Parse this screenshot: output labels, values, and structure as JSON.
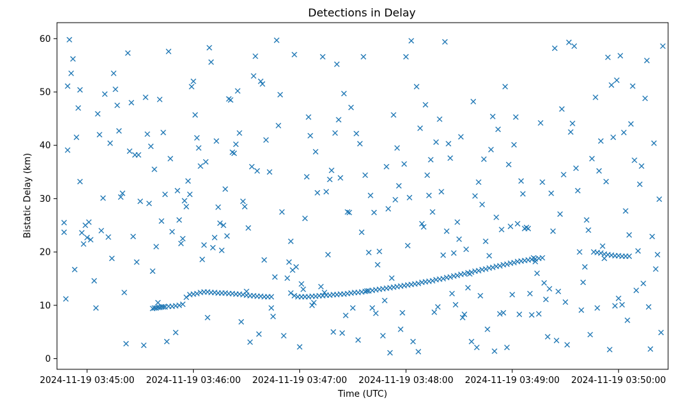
{
  "chart_data": {
    "type": "scatter",
    "title": "Detections in Delay",
    "xlabel": "Time (UTC)",
    "ylabel": "Bistatic Delay (km)",
    "marker": "x",
    "color": "#1f77b4",
    "xlim": [
      -17,
      328
    ],
    "ylim": [
      -2,
      63
    ],
    "xticks": [
      {
        "t": 0,
        "label": "2024-11-19 03:45:00"
      },
      {
        "t": 60,
        "label": "2024-11-19 03:46:00"
      },
      {
        "t": 120,
        "label": "2024-11-19 03:47:00"
      },
      {
        "t": 180,
        "label": "2024-11-19 03:48:00"
      },
      {
        "t": 240,
        "label": "2024-11-19 03:49:00"
      },
      {
        "t": 300,
        "label": "2024-11-19 03:50:00"
      }
    ],
    "yticks": [
      0,
      10,
      20,
      30,
      40,
      50,
      60
    ],
    "track_points": [
      [
        37,
        9.4
      ],
      [
        38,
        9.5
      ],
      [
        39,
        9.5
      ],
      [
        40,
        9.6
      ],
      [
        41,
        9.6
      ],
      [
        42,
        9.7
      ],
      [
        43,
        9.7
      ],
      [
        44,
        9.7
      ],
      [
        46,
        9.8
      ],
      [
        48,
        9.8
      ],
      [
        50,
        9.9
      ],
      [
        52,
        10
      ],
      [
        54,
        10.2
      ],
      [
        56,
        11.5
      ],
      [
        58,
        12
      ],
      [
        60,
        12.1
      ],
      [
        62,
        12.2
      ],
      [
        64,
        12.4
      ],
      [
        66,
        12.5
      ],
      [
        68,
        12.5
      ],
      [
        70,
        12.4
      ],
      [
        72,
        12.4
      ],
      [
        74,
        12.3
      ],
      [
        76,
        12.3
      ],
      [
        78,
        12.3
      ],
      [
        80,
        12.2
      ],
      [
        82,
        12.2
      ],
      [
        84,
        12.1
      ],
      [
        86,
        12.1
      ],
      [
        88,
        12
      ],
      [
        90,
        11.9
      ],
      [
        92,
        11.8
      ],
      [
        94,
        11.8
      ],
      [
        96,
        11.7
      ],
      [
        98,
        11.7
      ],
      [
        100,
        11.6
      ],
      [
        102,
        11.6
      ],
      [
        104,
        11.6
      ],
      [
        115,
        12.3
      ],
      [
        117,
        11.8
      ],
      [
        119,
        11.6
      ],
      [
        121,
        11.6
      ],
      [
        123,
        11.6
      ],
      [
        125,
        11.6
      ],
      [
        127,
        11.7
      ],
      [
        129,
        11.7
      ],
      [
        131,
        11.8
      ],
      [
        133,
        11.8
      ],
      [
        135,
        11.9
      ],
      [
        137,
        11.9
      ],
      [
        139,
        12
      ],
      [
        141,
        12
      ],
      [
        143,
        12.1
      ],
      [
        145,
        12.1
      ],
      [
        147,
        12.2
      ],
      [
        149,
        12.3
      ],
      [
        151,
        12.4
      ],
      [
        153,
        12.4
      ],
      [
        155,
        12.5
      ],
      [
        157,
        12.6
      ],
      [
        159,
        12.7
      ],
      [
        161,
        12.8
      ],
      [
        163,
        12.9
      ],
      [
        165,
        13
      ],
      [
        167,
        13.1
      ],
      [
        169,
        13.2
      ],
      [
        171,
        13.3
      ],
      [
        173,
        13.4
      ],
      [
        175,
        13.5
      ],
      [
        177,
        13.6
      ],
      [
        179,
        13.7
      ],
      [
        181,
        13.8
      ],
      [
        183,
        13.9
      ],
      [
        185,
        14
      ],
      [
        187,
        14.1
      ],
      [
        189,
        14.3
      ],
      [
        191,
        14.4
      ],
      [
        193,
        14.5
      ],
      [
        195,
        14.6
      ],
      [
        197,
        14.8
      ],
      [
        199,
        14.9
      ],
      [
        201,
        15
      ],
      [
        203,
        15.2
      ],
      [
        205,
        15.3
      ],
      [
        207,
        15.5
      ],
      [
        209,
        15.6
      ],
      [
        211,
        15.8
      ],
      [
        213,
        15.9
      ],
      [
        215,
        16.1
      ],
      [
        217,
        16.2
      ],
      [
        219,
        16.4
      ],
      [
        221,
        16.5
      ],
      [
        223,
        16.7
      ],
      [
        225,
        16.8
      ],
      [
        227,
        17
      ],
      [
        229,
        17.1
      ],
      [
        231,
        17.3
      ],
      [
        233,
        17.4
      ],
      [
        235,
        17.6
      ],
      [
        237,
        17.7
      ],
      [
        239,
        17.9
      ],
      [
        241,
        18
      ],
      [
        243,
        18.2
      ],
      [
        245,
        18.3
      ],
      [
        247,
        18.4
      ],
      [
        249,
        18.5
      ],
      [
        251,
        18.6
      ],
      [
        253,
        18.7
      ],
      [
        255,
        18.8
      ],
      [
        257,
        18.9
      ],
      [
        286,
        20
      ],
      [
        288,
        19.9
      ],
      [
        290,
        19.8
      ],
      [
        292,
        19.6
      ],
      [
        294,
        19.5
      ],
      [
        296,
        19.4
      ],
      [
        298,
        19.3
      ],
      [
        300,
        19.3
      ],
      [
        302,
        19.2
      ],
      [
        304,
        19.2
      ],
      [
        306,
        19.2
      ]
    ],
    "clutter_points": [
      [
        -13,
        25.5
      ],
      [
        -13,
        23.7
      ],
      [
        -12,
        11.2
      ],
      [
        -11,
        39.1
      ],
      [
        -11,
        51.1
      ],
      [
        -10,
        59.8
      ],
      [
        -9,
        53.5
      ],
      [
        -8,
        56.2
      ],
      [
        -7,
        16.7
      ],
      [
        -6,
        41.5
      ],
      [
        -5,
        47
      ],
      [
        -4,
        33.2
      ],
      [
        -4,
        50.4
      ],
      [
        -3,
        23.6
      ],
      [
        -2,
        21.5
      ],
      [
        -1,
        25
      ],
      [
        0,
        22.7
      ],
      [
        1,
        25.6
      ],
      [
        2,
        22.3
      ],
      [
        4,
        14.6
      ],
      [
        5,
        9.5
      ],
      [
        6,
        45.9
      ],
      [
        7,
        42
      ],
      [
        8,
        24
      ],
      [
        9,
        30.1
      ],
      [
        10,
        49.6
      ],
      [
        12,
        22.8
      ],
      [
        13,
        40.4
      ],
      [
        14,
        18.8
      ],
      [
        15,
        53.5
      ],
      [
        16,
        50.5
      ],
      [
        17,
        47.5
      ],
      [
        18,
        42.7
      ],
      [
        19,
        30.3
      ],
      [
        20,
        31
      ],
      [
        21,
        12.4
      ],
      [
        22,
        2.8
      ],
      [
        23,
        57.3
      ],
      [
        24,
        38.9
      ],
      [
        25,
        48
      ],
      [
        26,
        22.9
      ],
      [
        27,
        38.2
      ],
      [
        28,
        18.1
      ],
      [
        29,
        38.2
      ],
      [
        30,
        29.5
      ],
      [
        32,
        2.5
      ],
      [
        33,
        49
      ],
      [
        34,
        42.1
      ],
      [
        35,
        29.1
      ],
      [
        36,
        39.8
      ],
      [
        37,
        16.4
      ],
      [
        38,
        35.5
      ],
      [
        39,
        21
      ],
      [
        40,
        10.5
      ],
      [
        41,
        48.6
      ],
      [
        42,
        25.8
      ],
      [
        43,
        42.4
      ],
      [
        44,
        30.8
      ],
      [
        45,
        3.2
      ],
      [
        46,
        57.6
      ],
      [
        47,
        37.5
      ],
      [
        48,
        23.8
      ],
      [
        50,
        4.9
      ],
      [
        51,
        31.5
      ],
      [
        52,
        26
      ],
      [
        53,
        21.6
      ],
      [
        54,
        22.5
      ],
      [
        55,
        29.6
      ],
      [
        56,
        28.5
      ],
      [
        57,
        33.3
      ],
      [
        58,
        30.8
      ],
      [
        59,
        51
      ],
      [
        60,
        52
      ],
      [
        61,
        45.7
      ],
      [
        62,
        41.4
      ],
      [
        63,
        39.5
      ],
      [
        64,
        36.1
      ],
      [
        65,
        18.6
      ],
      [
        66,
        21.3
      ],
      [
        67,
        36.9
      ],
      [
        68,
        7.7
      ],
      [
        69,
        58.3
      ],
      [
        70,
        55.6
      ],
      [
        71,
        20.8
      ],
      [
        72,
        22.7
      ],
      [
        73,
        40.8
      ],
      [
        74,
        28.4
      ],
      [
        75,
        25.4
      ],
      [
        76,
        20.3
      ],
      [
        77,
        25
      ],
      [
        78,
        31.8
      ],
      [
        79,
        23
      ],
      [
        80,
        48.7
      ],
      [
        81,
        48.5
      ],
      [
        82,
        38.7
      ],
      [
        83,
        38.5
      ],
      [
        84,
        40.2
      ],
      [
        85,
        50.2
      ],
      [
        86,
        42.3
      ],
      [
        87,
        6.9
      ],
      [
        88,
        29.5
      ],
      [
        89,
        28.5
      ],
      [
        90,
        12.6
      ],
      [
        91,
        24.5
      ],
      [
        92,
        3.1
      ],
      [
        93,
        36
      ],
      [
        94,
        53
      ],
      [
        95,
        56.7
      ],
      [
        96,
        35.2
      ],
      [
        97,
        4.6
      ],
      [
        98,
        52
      ],
      [
        99,
        51.5
      ],
      [
        100,
        18.5
      ],
      [
        101,
        41
      ],
      [
        103,
        35
      ],
      [
        104,
        9.5
      ],
      [
        105,
        7.9
      ],
      [
        106,
        15.3
      ],
      [
        107,
        59.7
      ],
      [
        108,
        43.7
      ],
      [
        109,
        49.5
      ],
      [
        110,
        27.5
      ],
      [
        111,
        4.3
      ],
      [
        113,
        15.1
      ],
      [
        114,
        18.1
      ],
      [
        115,
        22
      ],
      [
        116,
        16.6
      ],
      [
        117,
        57
      ],
      [
        118,
        17.2
      ],
      [
        120,
        2.2
      ],
      [
        121,
        14
      ],
      [
        122,
        13
      ],
      [
        123,
        26.3
      ],
      [
        124,
        34.1
      ],
      [
        125,
        45.3
      ],
      [
        126,
        41.8
      ],
      [
        127,
        10
      ],
      [
        128,
        10.5
      ],
      [
        129,
        38.8
      ],
      [
        130,
        31.1
      ],
      [
        132,
        13.5
      ],
      [
        133,
        56.6
      ],
      [
        134,
        12.4
      ],
      [
        135,
        31.3
      ],
      [
        136,
        19.5
      ],
      [
        137,
        33.6
      ],
      [
        138,
        35.3
      ],
      [
        139,
        5
      ],
      [
        140,
        42.3
      ],
      [
        141,
        55.2
      ],
      [
        142,
        44.8
      ],
      [
        143,
        33.9
      ],
      [
        144,
        4.8
      ],
      [
        145,
        49.7
      ],
      [
        146,
        8.1
      ],
      [
        147,
        27.5
      ],
      [
        148,
        27.4
      ],
      [
        149,
        47.1
      ],
      [
        150,
        9.5
      ],
      [
        152,
        42.2
      ],
      [
        153,
        3.5
      ],
      [
        154,
        40.3
      ],
      [
        155,
        23.7
      ],
      [
        156,
        56.6
      ],
      [
        157,
        34.4
      ],
      [
        158,
        12.7
      ],
      [
        159,
        19.9
      ],
      [
        160,
        30.6
      ],
      [
        161,
        9.5
      ],
      [
        162,
        27.4
      ],
      [
        163,
        8.5
      ],
      [
        164,
        17.6
      ],
      [
        165,
        20.1
      ],
      [
        167,
        4.3
      ],
      [
        168,
        10.9
      ],
      [
        169,
        36
      ],
      [
        170,
        28.1
      ],
      [
        171,
        1.1
      ],
      [
        172,
        15.1
      ],
      [
        173,
        45.7
      ],
      [
        174,
        29.8
      ],
      [
        175,
        39.5
      ],
      [
        176,
        32.4
      ],
      [
        177,
        5.5
      ],
      [
        178,
        8.6
      ],
      [
        179,
        36.5
      ],
      [
        180,
        56.6
      ],
      [
        181,
        21.2
      ],
      [
        182,
        30.2
      ],
      [
        183,
        59.6
      ],
      [
        184,
        3.2
      ],
      [
        186,
        51
      ],
      [
        187,
        1.3
      ],
      [
        188,
        43.2
      ],
      [
        189,
        25.3
      ],
      [
        190,
        24.7
      ],
      [
        191,
        47.6
      ],
      [
        192,
        34.4
      ],
      [
        193,
        30.6
      ],
      [
        194,
        37.3
      ],
      [
        195,
        27.5
      ],
      [
        196,
        8.7
      ],
      [
        197,
        40.6
      ],
      [
        198,
        9.7
      ],
      [
        199,
        44.9
      ],
      [
        200,
        31.3
      ],
      [
        201,
        19.4
      ],
      [
        202,
        59.4
      ],
      [
        203,
        23.9
      ],
      [
        204,
        40.3
      ],
      [
        205,
        37.6
      ],
      [
        206,
        12.2
      ],
      [
        207,
        19.8
      ],
      [
        208,
        10.1
      ],
      [
        209,
        25.6
      ],
      [
        210,
        22.4
      ],
      [
        211,
        41.6
      ],
      [
        212,
        7.7
      ],
      [
        213,
        8.3
      ],
      [
        214,
        20.5
      ],
      [
        215,
        13.3
      ],
      [
        216,
        15.9
      ],
      [
        217,
        3.2
      ],
      [
        218,
        48.2
      ],
      [
        219,
        30.5
      ],
      [
        220,
        2.1
      ],
      [
        221,
        33.1
      ],
      [
        222,
        11.8
      ],
      [
        223,
        28.9
      ],
      [
        224,
        37.4
      ],
      [
        225,
        22
      ],
      [
        226,
        5.5
      ],
      [
        227,
        19.3
      ],
      [
        228,
        39.2
      ],
      [
        229,
        45.4
      ],
      [
        230,
        1.4
      ],
      [
        231,
        26.5
      ],
      [
        232,
        43
      ],
      [
        233,
        8.4
      ],
      [
        234,
        24.2
      ],
      [
        235,
        8.6
      ],
      [
        236,
        51
      ],
      [
        237,
        2.1
      ],
      [
        238,
        36.4
      ],
      [
        239,
        24.8
      ],
      [
        240,
        12
      ],
      [
        241,
        40.1
      ],
      [
        242,
        45.3
      ],
      [
        243,
        25.3
      ],
      [
        244,
        8.3
      ],
      [
        245,
        33.3
      ],
      [
        246,
        30.9
      ],
      [
        247,
        24.4
      ],
      [
        248,
        24.6
      ],
      [
        249,
        24.4
      ],
      [
        250,
        12.2
      ],
      [
        251,
        8.2
      ],
      [
        252,
        18.9
      ],
      [
        253,
        18.2
      ],
      [
        254,
        16
      ],
      [
        255,
        8.4
      ],
      [
        256,
        44.2
      ],
      [
        257,
        33.1
      ],
      [
        258,
        14.2
      ],
      [
        259,
        11.1
      ],
      [
        260,
        4.1
      ],
      [
        261,
        13.1
      ],
      [
        262,
        31
      ],
      [
        263,
        23.9
      ],
      [
        264,
        58.2
      ],
      [
        265,
        3.4
      ],
      [
        266,
        12.6
      ],
      [
        267,
        27.1
      ],
      [
        268,
        46.8
      ],
      [
        269,
        34.5
      ],
      [
        270,
        10.6
      ],
      [
        271,
        2.6
      ],
      [
        272,
        59.3
      ],
      [
        273,
        42.5
      ],
      [
        274,
        44.1
      ],
      [
        275,
        58.6
      ],
      [
        276,
        35.7
      ],
      [
        277,
        31.5
      ],
      [
        278,
        20
      ],
      [
        279,
        9.1
      ],
      [
        280,
        14.3
      ],
      [
        281,
        17.2
      ],
      [
        282,
        26
      ],
      [
        283,
        24.1
      ],
      [
        284,
        4.5
      ],
      [
        285,
        37.5
      ],
      [
        287,
        49
      ],
      [
        288,
        9.5
      ],
      [
        289,
        35.2
      ],
      [
        290,
        40.8
      ],
      [
        291,
        21.1
      ],
      [
        292,
        18.8
      ],
      [
        293,
        33.2
      ],
      [
        294,
        56.5
      ],
      [
        295,
        1.7
      ],
      [
        296,
        51.3
      ],
      [
        297,
        41.5
      ],
      [
        298,
        9.9
      ],
      [
        299,
        52.2
      ],
      [
        300,
        11.3
      ],
      [
        301,
        56.8
      ],
      [
        302,
        10.1
      ],
      [
        303,
        42.4
      ],
      [
        304,
        27.7
      ],
      [
        305,
        7.2
      ],
      [
        306,
        23.2
      ],
      [
        307,
        44
      ],
      [
        308,
        51.1
      ],
      [
        309,
        37.2
      ],
      [
        310,
        12.8
      ],
      [
        311,
        20.2
      ],
      [
        312,
        32.7
      ],
      [
        313,
        36.1
      ],
      [
        314,
        14.1
      ],
      [
        315,
        48.8
      ],
      [
        316,
        55.9
      ],
      [
        317,
        9.7
      ],
      [
        318,
        1.8
      ],
      [
        319,
        22.9
      ],
      [
        320,
        40.4
      ],
      [
        321,
        16.8
      ],
      [
        322,
        19.5
      ],
      [
        323,
        29.9
      ],
      [
        324,
        4.9
      ],
      [
        325,
        58.6
      ]
    ]
  }
}
